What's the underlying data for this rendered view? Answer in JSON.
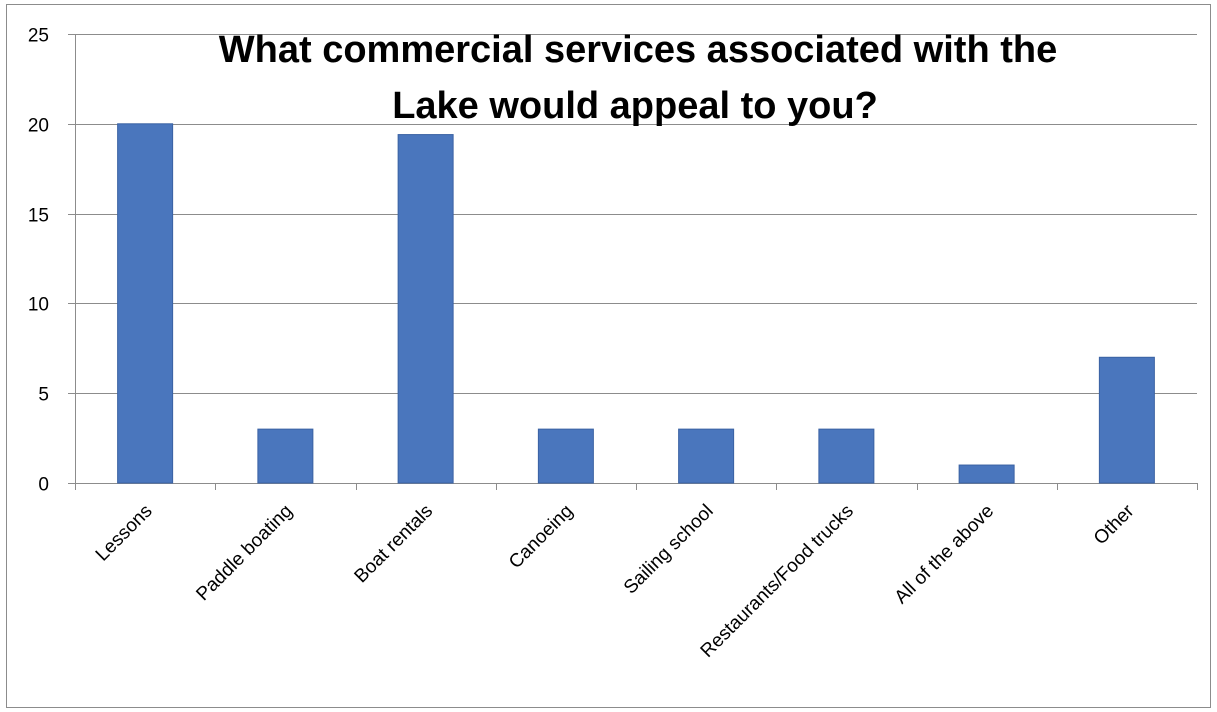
{
  "chart_data": {
    "type": "bar",
    "title_lines": [
      "What commercial services associated with the",
      "Lake would appeal to you?"
    ],
    "categories": [
      "Lessons",
      "Paddle boating",
      "Boat rentals",
      "Canoeing",
      "Sailing school",
      "Restaurants/Food trucks",
      "All of the above",
      "Other"
    ],
    "values": [
      20,
      3,
      19.4,
      3,
      3,
      3,
      1,
      7
    ],
    "xlabel": "",
    "ylabel": "",
    "ylim": [
      0,
      25
    ],
    "yticks": [
      0,
      5,
      10,
      15,
      20,
      25
    ],
    "grid": true,
    "legend": "none",
    "bar_color": "#4a76bd",
    "bar_edge_color": "#3a62a3",
    "grid_color": "#8c8c8c"
  }
}
